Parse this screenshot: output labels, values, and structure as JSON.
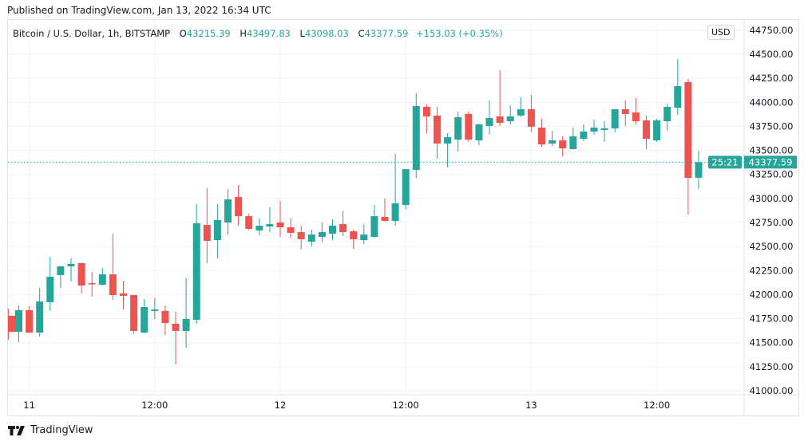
{
  "header": {
    "published": "Published on TradingView.com, Jan 13, 2022 16:34 UTC"
  },
  "legend": {
    "symbol": "Bitcoin / U.S. Dollar, 1h, BITSTAMP",
    "o_label": "O",
    "o_value": "43215.39",
    "h_label": "H",
    "h_value": "43497.83",
    "l_label": "L",
    "l_value": "43098.03",
    "c_label": "C",
    "c_value": "43377.59",
    "change": "+153.03 (+0.35%)"
  },
  "currency_button": "USD",
  "footer": {
    "brand": "TradingView"
  },
  "colors": {
    "up": "#26a69a",
    "down": "#ef5350",
    "grid": "#f0f3fa"
  },
  "chart_data": {
    "type": "candlestick",
    "title": "Bitcoin / U.S. Dollar, 1h, BITSTAMP",
    "ylim": [
      41000,
      44750
    ],
    "yticks": [
      "41000.00",
      "41250.00",
      "41500.00",
      "41750.00",
      "42000.00",
      "42250.00",
      "42500.00",
      "42750.00",
      "43000.00",
      "43250.00",
      "43500.00",
      "43750.00",
      "44000.00",
      "44250.00",
      "44500.00",
      "44750.00"
    ],
    "xticks": [
      {
        "hour_index": 2,
        "label": "11"
      },
      {
        "hour_index": 14,
        "label": "12:00"
      },
      {
        "hour_index": 26,
        "label": "12"
      },
      {
        "hour_index": 38,
        "label": "12:00"
      },
      {
        "hour_index": 50,
        "label": "13"
      },
      {
        "hour_index": 62,
        "label": "12:00"
      }
    ],
    "last_price": {
      "value": 43377.59,
      "label": "43377.59",
      "countdown": "25:21"
    },
    "ohlc": [
      [
        41780,
        41854,
        41531,
        41614
      ],
      [
        41614,
        41887,
        41506,
        41838
      ],
      [
        41838,
        41879,
        41605,
        41605
      ],
      [
        41605,
        42070,
        41564,
        41929
      ],
      [
        41921,
        42393,
        41830,
        42186
      ],
      [
        42203,
        42294,
        42070,
        42294
      ],
      [
        42294,
        42377,
        42136,
        42319
      ],
      [
        42327,
        42327,
        42012,
        42095
      ],
      [
        42120,
        42236,
        41979,
        42110
      ],
      [
        42103,
        42277,
        42095,
        42211
      ],
      [
        42211,
        42634,
        41946,
        41995
      ],
      [
        42012,
        42145,
        41846,
        41987
      ],
      [
        41995,
        41995,
        41589,
        41622
      ],
      [
        41605,
        41954,
        41597,
        41871
      ],
      [
        41830,
        41962,
        41746,
        41846
      ],
      [
        41830,
        41887,
        41580,
        41705
      ],
      [
        41697,
        41821,
        41274,
        41622
      ],
      [
        41622,
        42170,
        41448,
        41747
      ],
      [
        41738,
        42941,
        41697,
        42742
      ],
      [
        42725,
        43107,
        42327,
        42559
      ],
      [
        42567,
        42941,
        42377,
        42775
      ],
      [
        42750,
        43098,
        42626,
        42990
      ],
      [
        43015,
        43140,
        42717,
        42816
      ],
      [
        42816,
        42841,
        42667,
        42684
      ],
      [
        42667,
        42792,
        42617,
        42717
      ],
      [
        42708,
        42908,
        42650,
        42733
      ],
      [
        42750,
        42974,
        42600,
        42700
      ],
      [
        42700,
        42792,
        42584,
        42642
      ],
      [
        42650,
        42717,
        42468,
        42576
      ],
      [
        42551,
        42675,
        42501,
        42625
      ],
      [
        42600,
        42750,
        42543,
        42650
      ],
      [
        42634,
        42783,
        42567,
        42717
      ],
      [
        42733,
        42874,
        42609,
        42650
      ],
      [
        42659,
        42675,
        42476,
        42576
      ],
      [
        42567,
        42733,
        42526,
        42625
      ],
      [
        42600,
        42932,
        42592,
        42816
      ],
      [
        42808,
        43000,
        42758,
        42767
      ],
      [
        42767,
        43463,
        42717,
        42949
      ],
      [
        42932,
        43305,
        42891,
        43305
      ],
      [
        43297,
        44094,
        43214,
        43961
      ],
      [
        43953,
        43978,
        43679,
        43853
      ],
      [
        43862,
        43953,
        43413,
        43571
      ],
      [
        43571,
        43679,
        43322,
        43637
      ],
      [
        43612,
        43903,
        43488,
        43845
      ],
      [
        43878,
        43903,
        43588,
        43612
      ],
      [
        43604,
        43779,
        43554,
        43770
      ],
      [
        43754,
        44020,
        43663,
        43837
      ],
      [
        43853,
        44334,
        43754,
        43787
      ],
      [
        43803,
        43970,
        43770,
        43853
      ],
      [
        43862,
        44052,
        43845,
        43928
      ],
      [
        43928,
        44077,
        43687,
        43746
      ],
      [
        43737,
        43828,
        43538,
        43563
      ],
      [
        43571,
        43704,
        43546,
        43604
      ],
      [
        43604,
        43646,
        43438,
        43521
      ],
      [
        43513,
        43737,
        43513,
        43646
      ],
      [
        43621,
        43770,
        43596,
        43696
      ],
      [
        43696,
        43820,
        43663,
        43737
      ],
      [
        43712,
        43803,
        43588,
        43729
      ],
      [
        43729,
        43928,
        43687,
        43928
      ],
      [
        43928,
        44020,
        43754,
        43878
      ],
      [
        43895,
        44044,
        43770,
        43803
      ],
      [
        43812,
        43862,
        43513,
        43621
      ],
      [
        43604,
        43828,
        43588,
        43812
      ],
      [
        43803,
        43986,
        43704,
        43953
      ],
      [
        43944,
        44450,
        43870,
        44168
      ],
      [
        44210,
        44243,
        42833,
        43214
      ],
      [
        43215.39,
        43497.83,
        43098.03,
        43377.59
      ]
    ]
  }
}
